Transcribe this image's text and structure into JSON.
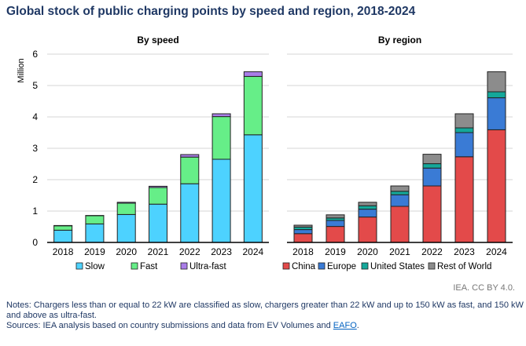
{
  "title": "Global stock of public charging points by speed and region, 2018-2024",
  "credit": "IEA. CC BY 4.0.",
  "notes": "Notes: Chargers less than or equal to 22 kW are classified as slow, chargers greater than 22 kW and up to 150 kW as fast, and 150 kW and above as ultra-fast.",
  "sources_prefix": "Sources: IEA analysis based on country submissions and data from EV Volumes and ",
  "sources_link": "EAFO",
  "sources_suffix": ".",
  "chart_data": [
    {
      "type": "bar",
      "stacked": true,
      "title": "By speed",
      "ylabel": "Million",
      "ylim": [
        0,
        6
      ],
      "yticks": [
        0,
        1,
        2,
        3,
        4,
        5,
        6
      ],
      "grid": true,
      "legend": "bottom",
      "categories": [
        "2018",
        "2019",
        "2020",
        "2021",
        "2022",
        "2023",
        "2024"
      ],
      "series": [
        {
          "name": "Slow",
          "color": "#4dd2ff",
          "values": [
            0.39,
            0.59,
            0.89,
            1.22,
            1.87,
            2.65,
            3.43
          ]
        },
        {
          "name": "Fast",
          "color": "#66ee88",
          "values": [
            0.14,
            0.26,
            0.36,
            0.53,
            0.85,
            1.36,
            1.86
          ]
        },
        {
          "name": "Ultra-fast",
          "color": "#a97de8",
          "values": [
            0.01,
            0.01,
            0.03,
            0.04,
            0.08,
            0.09,
            0.15
          ]
        }
      ]
    },
    {
      "type": "bar",
      "stacked": true,
      "title": "By region",
      "ylim": [
        0,
        6
      ],
      "grid": true,
      "legend": "bottom",
      "categories": [
        "2018",
        "2019",
        "2020",
        "2021",
        "2022",
        "2023",
        "2024"
      ],
      "series": [
        {
          "name": "China",
          "color": "#e34a4a",
          "values": [
            0.28,
            0.51,
            0.81,
            1.15,
            1.8,
            2.73,
            3.59
          ]
        },
        {
          "name": "Europe",
          "color": "#3a7bd5",
          "values": [
            0.13,
            0.19,
            0.25,
            0.37,
            0.57,
            0.77,
            1.02
          ]
        },
        {
          "name": "United States",
          "color": "#14a89a",
          "values": [
            0.08,
            0.08,
            0.11,
            0.11,
            0.14,
            0.15,
            0.19
          ]
        },
        {
          "name": "Rest of World",
          "color": "#8c8c8c",
          "values": [
            0.06,
            0.1,
            0.11,
            0.17,
            0.3,
            0.45,
            0.64
          ]
        }
      ]
    }
  ]
}
